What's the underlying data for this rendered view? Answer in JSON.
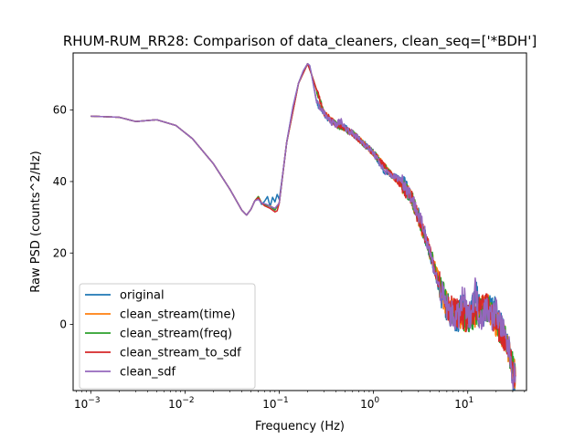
{
  "chart_data": {
    "type": "line",
    "title": "RHUM-RUM_RR28: Comparison of data_cleaners, clean_seq=['*BDH']",
    "xlabel": "Frequency (Hz)",
    "ylabel": "Raw PSD (counts^2/Hz)",
    "xscale": "log",
    "xlim": [
      0.00065,
      42
    ],
    "ylim": [
      -18.5,
      76
    ],
    "xticks": [
      {
        "value": 0.001,
        "label": "10",
        "exp": "−3"
      },
      {
        "value": 0.01,
        "label": "10",
        "exp": "−2"
      },
      {
        "value": 0.1,
        "label": "10",
        "exp": "−1"
      },
      {
        "value": 1,
        "label": "10",
        "exp": "0"
      },
      {
        "value": 10,
        "label": "10",
        "exp": "1"
      }
    ],
    "yticks": [
      0,
      20,
      40,
      60
    ],
    "grid": false,
    "legend_position": "lower-left",
    "series": [
      {
        "name": "original",
        "color": "#1f77b4",
        "x": [
          0.001,
          0.002,
          0.003,
          0.005,
          0.008,
          0.012,
          0.02,
          0.03,
          0.04,
          0.045,
          0.05,
          0.055,
          0.06,
          0.065,
          0.07,
          0.075,
          0.08,
          0.085,
          0.09,
          0.095,
          0.1,
          0.11,
          0.12,
          0.14,
          0.16,
          0.18,
          0.2,
          0.21,
          0.22,
          0.25,
          0.3,
          0.35,
          0.4,
          0.5,
          0.6,
          0.8,
          1.0,
          1.3,
          1.6,
          2.0,
          2.5,
          3.0,
          4.0,
          5.0,
          6.0,
          7.0,
          8.0,
          9.0,
          10.0,
          11.0,
          12.0,
          14.0,
          16.0,
          20.0,
          25.0,
          28.0,
          30.0,
          32.0
        ],
        "y": [
          58.3,
          58.0,
          56.8,
          57.3,
          55.7,
          52.0,
          45.0,
          37.8,
          32.0,
          30.6,
          32.2,
          34.6,
          35.5,
          33.6,
          34.5,
          35.8,
          33.0,
          35.6,
          34.3,
          36.4,
          35.0,
          43.0,
          51.0,
          61.0,
          67.5,
          71.0,
          73.0,
          72.5,
          70.0,
          62.0,
          59.0,
          56.8,
          56.0,
          55.0,
          53.5,
          50.5,
          48.0,
          43.0,
          41.5,
          40.5,
          36.0,
          30.5,
          20.0,
          10.0,
          5.0,
          2.0,
          2.0,
          8.0,
          1.5,
          4.0,
          10.0,
          2.0,
          5.0,
          4.0,
          -4.0,
          -8.0,
          -14.5,
          -14.5
        ]
      },
      {
        "name": "clean_stream(time)",
        "color": "#ff7f0e",
        "x": [
          0.001,
          0.002,
          0.003,
          0.005,
          0.008,
          0.012,
          0.02,
          0.03,
          0.04,
          0.045,
          0.05,
          0.055,
          0.06,
          0.065,
          0.07,
          0.08,
          0.09,
          0.1,
          0.12,
          0.16,
          0.2,
          0.22,
          0.3,
          0.4,
          0.6,
          1.0,
          1.6,
          2.5,
          4.0,
          6.0,
          10.0,
          16.0,
          25.0,
          32.0
        ],
        "y": [
          58.3,
          58.0,
          56.8,
          57.3,
          55.7,
          52.0,
          45.0,
          37.8,
          32.0,
          30.6,
          32.2,
          34.6,
          35.8,
          34.0,
          33.6,
          33.2,
          32.3,
          34.0,
          51.0,
          67.5,
          73.0,
          70.0,
          59.0,
          56.0,
          53.5,
          48.0,
          41.5,
          36.0,
          20.0,
          5.0,
          1.5,
          5.0,
          -4.0,
          -14.5
        ]
      },
      {
        "name": "clean_stream(freq)",
        "color": "#2ca02c",
        "x": [
          0.001,
          0.002,
          0.003,
          0.005,
          0.008,
          0.012,
          0.02,
          0.03,
          0.04,
          0.045,
          0.05,
          0.055,
          0.06,
          0.065,
          0.07,
          0.08,
          0.09,
          0.1,
          0.12,
          0.16,
          0.2,
          0.22,
          0.3,
          0.4,
          0.6,
          1.0,
          1.6,
          2.5,
          4.0,
          6.0,
          10.0,
          16.0,
          25.0,
          32.0
        ],
        "y": [
          58.3,
          58.0,
          56.8,
          57.3,
          55.7,
          52.0,
          45.0,
          37.8,
          32.0,
          30.6,
          32.2,
          34.6,
          35.8,
          34.0,
          33.5,
          33.0,
          32.0,
          34.0,
          51.0,
          67.5,
          73.0,
          70.0,
          59.0,
          56.0,
          53.5,
          48.0,
          41.5,
          36.0,
          20.0,
          5.0,
          1.5,
          5.0,
          -4.0,
          -14.5
        ]
      },
      {
        "name": "clean_stream_to_sdf",
        "color": "#d62728",
        "x": [
          0.001,
          0.002,
          0.003,
          0.005,
          0.008,
          0.012,
          0.02,
          0.03,
          0.04,
          0.045,
          0.05,
          0.055,
          0.06,
          0.065,
          0.07,
          0.08,
          0.09,
          0.095,
          0.1,
          0.12,
          0.16,
          0.2,
          0.22,
          0.3,
          0.4,
          0.6,
          1.0,
          1.6,
          2.5,
          4.0,
          6.0,
          10.0,
          16.0,
          25.0,
          32.0
        ],
        "y": [
          58.3,
          58.0,
          56.8,
          57.3,
          55.7,
          52.0,
          45.0,
          37.8,
          32.0,
          30.6,
          32.2,
          34.6,
          35.5,
          34.0,
          33.2,
          32.5,
          31.5,
          31.8,
          34.0,
          51.0,
          67.5,
          73.0,
          70.0,
          59.0,
          56.0,
          53.5,
          48.0,
          41.5,
          36.0,
          20.0,
          5.0,
          1.5,
          5.0,
          -4.0,
          -14.5
        ]
      },
      {
        "name": "clean_sdf",
        "color": "#9467bd",
        "x": [
          0.001,
          0.002,
          0.003,
          0.005,
          0.008,
          0.012,
          0.02,
          0.03,
          0.04,
          0.045,
          0.05,
          0.055,
          0.06,
          0.065,
          0.07,
          0.075,
          0.08,
          0.085,
          0.09,
          0.1,
          0.11,
          0.12,
          0.14,
          0.16,
          0.18,
          0.2,
          0.21,
          0.22,
          0.25,
          0.3,
          0.35,
          0.4,
          0.45,
          0.5,
          0.6,
          0.8,
          1.0,
          1.3,
          1.6,
          2.0,
          2.5,
          3.0,
          3.5,
          4.0,
          5.0,
          6.0,
          7.0,
          8.0,
          9.0,
          10.0,
          11.0,
          12.0,
          13.0,
          14.0,
          16.0,
          18.0,
          20.0,
          25.0,
          28.0,
          30.0,
          32.0
        ],
        "y": [
          58.3,
          58.0,
          56.8,
          57.3,
          55.7,
          52.0,
          45.0,
          37.8,
          32.0,
          30.6,
          32.2,
          34.6,
          35.0,
          34.0,
          33.8,
          33.5,
          33.0,
          32.8,
          32.5,
          34.0,
          43.0,
          51.0,
          61.0,
          67.5,
          71.0,
          73.0,
          72.5,
          70.0,
          62.0,
          59.0,
          56.8,
          56.0,
          57.0,
          55.0,
          53.5,
          50.5,
          48.0,
          43.0,
          41.5,
          40.5,
          36.0,
          30.5,
          26.0,
          20.0,
          10.0,
          5.0,
          2.0,
          2.0,
          8.0,
          1.5,
          4.0,
          10.0,
          3.0,
          2.0,
          5.0,
          2.0,
          4.0,
          -4.0,
          -8.0,
          -14.5,
          -14.5
        ]
      }
    ]
  }
}
